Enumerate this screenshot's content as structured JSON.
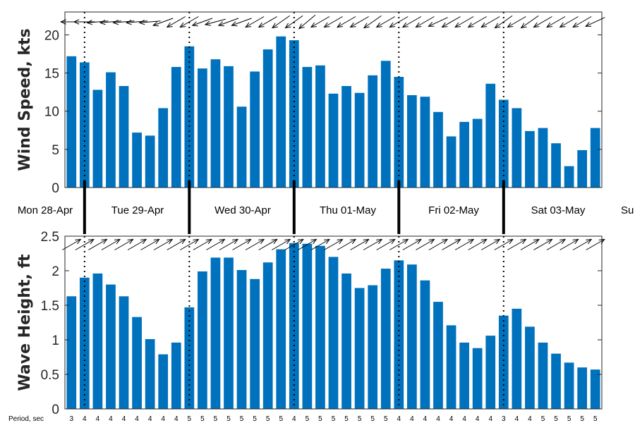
{
  "chart_data": [
    {
      "type": "bar",
      "ylabel": "Wind Speed, kts",
      "ylim": [
        0,
        23
      ],
      "yticks": [
        "0",
        "5",
        "10",
        "15",
        "20"
      ],
      "bar_color": "#0072BD",
      "values": [
        17.2,
        16.4,
        12.8,
        15.1,
        13.3,
        7.2,
        6.8,
        10.4,
        15.8,
        18.5,
        15.6,
        16.8,
        15.9,
        10.6,
        15.2,
        18.1,
        19.8,
        19.3,
        15.8,
        16.0,
        12.3,
        13.3,
        12.4,
        14.7,
        16.6,
        14.5,
        12.1,
        11.9,
        9.9,
        6.7,
        8.6,
        9.0,
        13.6,
        11.5,
        10.4,
        7.4,
        7.8,
        5.8,
        2.8,
        4.9,
        7.8
      ],
      "direction_deg": [
        180,
        180,
        175,
        175,
        175,
        175,
        175,
        160,
        150,
        150,
        160,
        165,
        160,
        160,
        150,
        150,
        145,
        145,
        140,
        150,
        150,
        150,
        150,
        145,
        150,
        150,
        150,
        150,
        155,
        150,
        150,
        150,
        150,
        145,
        150,
        145,
        150,
        150,
        150,
        150,
        155
      ]
    },
    {
      "type": "bar",
      "ylabel": "Wave Height, ft",
      "ylim": [
        0,
        2.5
      ],
      "yticks": [
        "0",
        "0.5",
        "1",
        "1.5",
        "2",
        "2.5"
      ],
      "bar_color": "#0072BD",
      "values": [
        1.63,
        1.9,
        1.96,
        1.8,
        1.63,
        1.33,
        1.01,
        0.79,
        0.96,
        1.47,
        1.99,
        2.19,
        2.19,
        2.01,
        1.88,
        2.12,
        2.31,
        2.4,
        2.39,
        2.36,
        2.2,
        1.96,
        1.75,
        1.79,
        2.03,
        2.15,
        2.09,
        1.86,
        1.55,
        1.21,
        0.96,
        0.88,
        1.06,
        1.35,
        1.45,
        1.19,
        0.96,
        0.8,
        0.67,
        0.6,
        0.57
      ],
      "direction_deg": [
        330,
        330,
        330,
        330,
        330,
        330,
        330,
        330,
        330,
        330,
        330,
        330,
        330,
        330,
        330,
        330,
        330,
        330,
        330,
        330,
        330,
        330,
        330,
        330,
        330,
        330,
        330,
        330,
        330,
        330,
        330,
        330,
        330,
        330,
        330,
        330,
        330,
        330,
        330,
        330,
        330
      ]
    }
  ],
  "days": [
    "Mon 28-Apr",
    "Tue 29-Apr",
    "Wed 30-Apr",
    "Thu 01-May",
    "Fri 02-May",
    "Sat 03-May",
    "Su"
  ],
  "period_label": "Period, sec",
  "periods": [
    "3",
    "4",
    "4",
    "4",
    "4",
    "4",
    "4",
    "4",
    "4",
    "5",
    "5",
    "5",
    "5",
    "5",
    "5",
    "5",
    "5",
    "4",
    "5",
    "5",
    "5",
    "5",
    "5",
    "5",
    "5",
    "4",
    "4",
    "4",
    "4",
    "4",
    "4",
    "4",
    "4",
    "3",
    "4",
    "4",
    "5",
    "5",
    "5",
    "5",
    "5"
  ]
}
